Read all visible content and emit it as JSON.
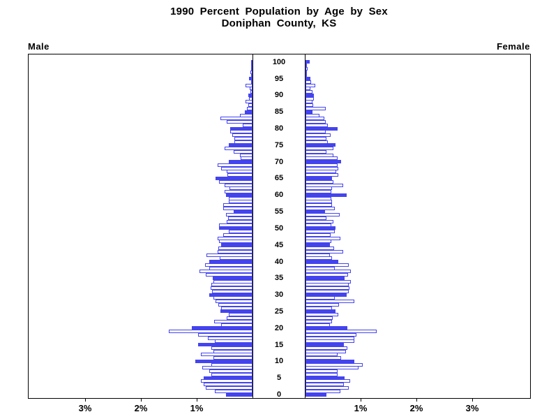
{
  "title": {
    "line1": "1990 Percent Population by Age by Sex",
    "line2": "Doniphan County, KS"
  },
  "headers": {
    "male": "Male",
    "female": "Female"
  },
  "colors": {
    "bar_blue": "#4444ee",
    "axis_black": "#000000",
    "background": "#ffffff"
  },
  "axis": {
    "left_percent_ticks": [
      {
        "label": "3%",
        "value": 3
      },
      {
        "label": "2%",
        "value": 2
      },
      {
        "label": "1%",
        "value": 1
      }
    ],
    "right_percent_ticks": [
      {
        "label": "1%",
        "value": 1
      },
      {
        "label": "2%",
        "value": 2
      },
      {
        "label": "3%",
        "value": 3
      }
    ],
    "age_tick_labels": [
      "0",
      "5",
      "10",
      "15",
      "20",
      "25",
      "30",
      "35",
      "40",
      "45",
      "50",
      "55",
      "60",
      "65",
      "70",
      "75",
      "80",
      "85",
      "90",
      "95",
      "100"
    ],
    "age_tick_interval": 5
  },
  "chart_data": {
    "type": "bar",
    "variant": "population_pyramid",
    "title": "1990 Percent Population by Age by Sex",
    "subtitle": "Doniphan County, KS",
    "unit": "percent of total population per single year of age",
    "age_range": [
      0,
      100
    ],
    "x_range_percent_per_side": [
      0,
      4
    ],
    "solid_fill_rule": "bars for ages divisible by 5 are solid blue; all other ages are white with blue outline",
    "legend_position": "none",
    "grid": false,
    "series": [
      {
        "name": "Male",
        "side": "left",
        "ages_0_to_100": [
          0.48,
          0.67,
          0.84,
          0.87,
          0.92,
          0.88,
          0.74,
          0.78,
          0.9,
          0.74,
          1.03,
          0.7,
          0.92,
          0.7,
          0.74,
          0.97,
          0.67,
          0.8,
          0.98,
          1.5,
          1.09,
          0.56,
          0.69,
          0.46,
          0.43,
          0.57,
          0.56,
          0.61,
          0.66,
          0.7,
          0.77,
          0.72,
          0.75,
          0.74,
          0.7,
          0.71,
          0.84,
          0.95,
          0.78,
          0.85,
          0.78,
          0.59,
          0.83,
          0.62,
          0.61,
          0.56,
          0.6,
          0.63,
          0.52,
          0.42,
          0.6,
          0.6,
          0.46,
          0.44,
          0.47,
          0.34,
          0.52,
          0.52,
          0.42,
          0.42,
          0.47,
          0.5,
          0.41,
          0.5,
          0.6,
          0.66,
          0.45,
          0.46,
          0.56,
          0.62,
          0.42,
          0.21,
          0.23,
          0.34,
          0.5,
          0.42,
          0.32,
          0.32,
          0.36,
          0.4,
          0.4,
          0.17,
          0.46,
          0.58,
          0.23,
          0.14,
          0.1,
          0.08,
          0.12,
          0.06,
          0.07,
          0.04,
          0.05,
          0.13,
          0.03,
          0.06,
          0.02,
          0.04,
          0.02,
          0.02,
          0.03
        ]
      },
      {
        "name": "Female",
        "side": "right",
        "ages_0_to_100": [
          0.38,
          0.62,
          0.77,
          0.69,
          0.8,
          0.7,
          0.58,
          0.58,
          0.95,
          1.03,
          0.87,
          0.64,
          0.57,
          0.73,
          0.75,
          0.69,
          0.87,
          0.87,
          0.91,
          1.27,
          0.75,
          0.44,
          0.48,
          0.49,
          0.59,
          0.54,
          0.47,
          0.6,
          0.87,
          0.52,
          0.74,
          0.77,
          0.79,
          0.77,
          0.81,
          0.7,
          0.76,
          0.81,
          0.53,
          0.77,
          0.59,
          0.48,
          0.44,
          0.67,
          0.51,
          0.44,
          0.46,
          0.63,
          0.45,
          0.52,
          0.54,
          0.46,
          0.5,
          0.37,
          0.61,
          0.35,
          0.53,
          0.47,
          0.48,
          0.46,
          0.74,
          0.46,
          0.47,
          0.68,
          0.5,
          0.47,
          0.59,
          0.55,
          0.59,
          0.58,
          0.64,
          0.58,
          0.5,
          0.37,
          0.5,
          0.54,
          0.4,
          0.37,
          0.45,
          0.36,
          0.58,
          0.4,
          0.36,
          0.34,
          0.25,
          0.12,
          0.36,
          0.14,
          0.13,
          0.15,
          0.15,
          0.13,
          0.09,
          0.18,
          0.1,
          0.09,
          0.03,
          0.02,
          0.04,
          0.02,
          0.08
        ]
      }
    ]
  }
}
